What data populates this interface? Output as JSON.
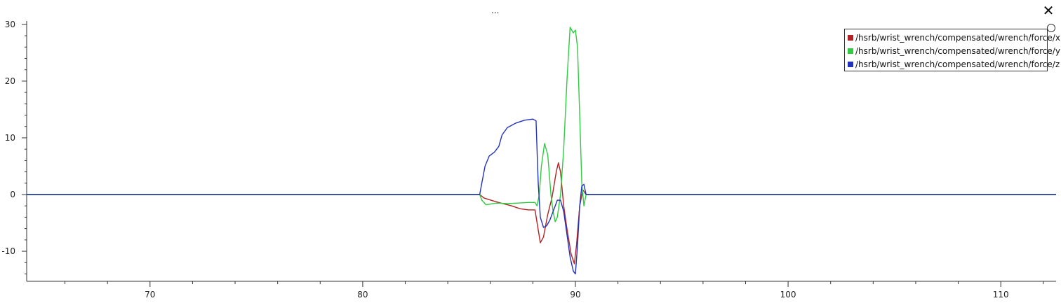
{
  "window": {
    "title": "...",
    "close_symbol": "✕"
  },
  "chart_data": {
    "type": "line",
    "xlim": [
      64.2,
      112.6
    ],
    "ylim": [
      -15.3,
      30.6
    ],
    "x_ticks": [
      70,
      80,
      90,
      100,
      110
    ],
    "y_ticks": [
      -10,
      0,
      10,
      20,
      30
    ],
    "legend_position": "top-right",
    "series": [
      {
        "name": "/hsrb/wrist_wrench/compensated/wrench/force/x",
        "color": "#b22222",
        "points": [
          [
            64.2,
            0
          ],
          [
            85.5,
            0
          ],
          [
            85.7,
            -0.6
          ],
          [
            86.2,
            -1.2
          ],
          [
            86.6,
            -1.6
          ],
          [
            87.0,
            -2.0
          ],
          [
            87.4,
            -2.5
          ],
          [
            87.8,
            -2.7
          ],
          [
            88.1,
            -2.7
          ],
          [
            88.2,
            -5.0
          ],
          [
            88.35,
            -8.5
          ],
          [
            88.5,
            -7.5
          ],
          [
            88.7,
            -3.5
          ],
          [
            88.9,
            -0.5
          ],
          [
            89.1,
            4.0
          ],
          [
            89.2,
            5.6
          ],
          [
            89.3,
            4.0
          ],
          [
            89.45,
            -2.0
          ],
          [
            89.6,
            -6.0
          ],
          [
            89.8,
            -10.5
          ],
          [
            89.95,
            -12.2
          ],
          [
            90.05,
            -9.0
          ],
          [
            90.2,
            -2.0
          ],
          [
            90.35,
            0.8
          ],
          [
            90.5,
            0
          ],
          [
            112.6,
            0
          ]
        ]
      },
      {
        "name": "/hsrb/wrist_wrench/compensated/wrench/force/y",
        "color": "#2ecc40",
        "points": [
          [
            64.2,
            0
          ],
          [
            85.5,
            0
          ],
          [
            85.6,
            -1.0
          ],
          [
            85.8,
            -1.8
          ],
          [
            86.3,
            -1.5
          ],
          [
            86.8,
            -1.6
          ],
          [
            87.3,
            -1.5
          ],
          [
            87.8,
            -1.4
          ],
          [
            88.1,
            -1.4
          ],
          [
            88.2,
            -2.0
          ],
          [
            88.3,
            0
          ],
          [
            88.4,
            5.0
          ],
          [
            88.55,
            9.0
          ],
          [
            88.7,
            7.0
          ],
          [
            88.85,
            0
          ],
          [
            88.95,
            -3.0
          ],
          [
            89.05,
            -4.8
          ],
          [
            89.15,
            -4.0
          ],
          [
            89.3,
            0
          ],
          [
            89.45,
            8.0
          ],
          [
            89.6,
            20.0
          ],
          [
            89.75,
            29.5
          ],
          [
            89.9,
            28.5
          ],
          [
            90.0,
            29.0
          ],
          [
            90.1,
            26.0
          ],
          [
            90.2,
            14.0
          ],
          [
            90.3,
            2.0
          ],
          [
            90.4,
            -2.0
          ],
          [
            90.5,
            0
          ],
          [
            112.6,
            0
          ]
        ]
      },
      {
        "name": "/hsrb/wrist_wrench/compensated/wrench/force/z",
        "color": "#2233bb",
        "points": [
          [
            64.2,
            0
          ],
          [
            85.5,
            0
          ],
          [
            85.6,
            2.0
          ],
          [
            85.75,
            5.0
          ],
          [
            85.95,
            6.8
          ],
          [
            86.2,
            7.5
          ],
          [
            86.4,
            8.5
          ],
          [
            86.55,
            10.5
          ],
          [
            86.8,
            11.8
          ],
          [
            87.2,
            12.6
          ],
          [
            87.6,
            13.1
          ],
          [
            88.0,
            13.3
          ],
          [
            88.15,
            13.0
          ],
          [
            88.25,
            2.0
          ],
          [
            88.35,
            -4.0
          ],
          [
            88.5,
            -5.8
          ],
          [
            88.65,
            -5.5
          ],
          [
            88.8,
            -4.5
          ],
          [
            89.0,
            -2.5
          ],
          [
            89.15,
            -1.0
          ],
          [
            89.3,
            -1.0
          ],
          [
            89.45,
            -3.0
          ],
          [
            89.6,
            -7.0
          ],
          [
            89.75,
            -11.0
          ],
          [
            89.9,
            -13.5
          ],
          [
            90.0,
            -14.0
          ],
          [
            90.1,
            -9.0
          ],
          [
            90.2,
            -2.0
          ],
          [
            90.3,
            1.5
          ],
          [
            90.4,
            1.8
          ],
          [
            90.5,
            0
          ],
          [
            112.6,
            0
          ]
        ]
      }
    ]
  }
}
